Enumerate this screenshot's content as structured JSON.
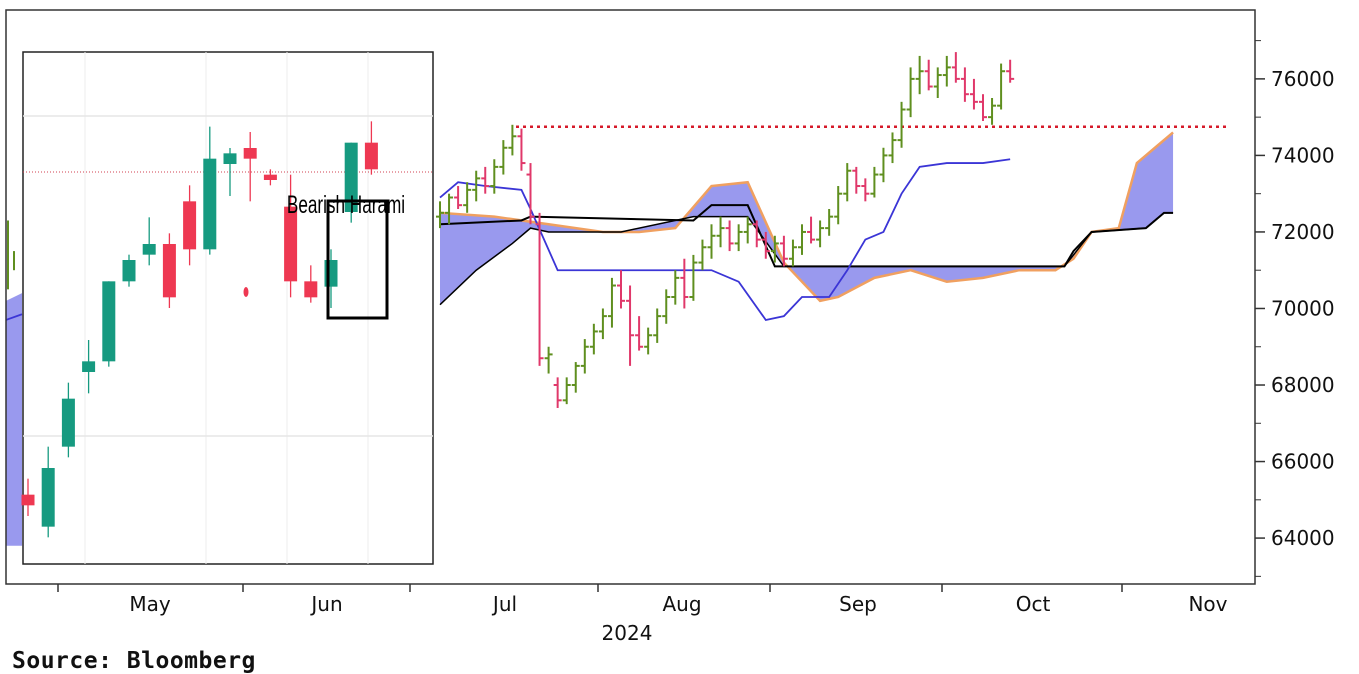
{
  "source": "Source: Bloomberg",
  "chart_data": [
    {
      "type": "ohlc",
      "year_label": "2024",
      "x_ticks": [
        "May",
        "Jun",
        "Jul",
        "Aug",
        "Sep",
        "Oct",
        "Nov"
      ],
      "y_ticks": [
        "64000",
        "66000",
        "68000",
        "70000",
        "72000",
        "74000",
        "76000"
      ],
      "ylim": [
        62800,
        77800
      ],
      "resistance_level": 74750,
      "colors": {
        "up_bar": "#5f8f1f",
        "down_bar": "#e0386a",
        "cloud_fill": "#9999ee",
        "cloud_edge_upper": "#f0a060",
        "cloud_edge_lower": "#000000",
        "kijun": "#000000",
        "tenkan": "#3b35d6",
        "resistance": "#d61a2a"
      },
      "series": [
        {
          "type": "ohlc",
          "bars": [
            [
              72400,
              72800,
              72100,
              72500
            ],
            [
              72500,
              73000,
              72200,
              72900
            ],
            [
              72900,
              73200,
              72600,
              72700
            ],
            [
              72700,
              73300,
              72500,
              73100
            ],
            [
              73100,
              73600,
              72800,
              73400
            ],
            [
              73400,
              73700,
              73000,
              73200
            ],
            [
              73200,
              73900,
              73000,
              73700
            ],
            [
              73700,
              74400,
              73500,
              74200
            ],
            [
              74200,
              74800,
              74000,
              74500
            ],
            [
              74500,
              74700,
              73600,
              73800
            ],
            [
              73500,
              73800,
              72200,
              72400
            ],
            [
              72200,
              72500,
              68500,
              68700
            ],
            [
              68700,
              69000,
              68300,
              68800
            ],
            [
              68000,
              68200,
              67400,
              67600
            ],
            [
              67600,
              68200,
              67500,
              68000
            ],
            [
              68000,
              68600,
              67800,
              68500
            ],
            [
              68500,
              69200,
              68300,
              69000
            ],
            [
              69000,
              69600,
              68800,
              69400
            ],
            [
              69400,
              70000,
              69200,
              69800
            ],
            [
              69800,
              70800,
              69500,
              70600
            ],
            [
              70600,
              71000,
              70000,
              70200
            ],
            [
              70200,
              70600,
              68500,
              69300
            ],
            [
              69300,
              69800,
              68900,
              69000
            ],
            [
              69000,
              69500,
              68800,
              69300
            ],
            [
              69300,
              70000,
              69100,
              69800
            ],
            [
              69800,
              70500,
              69600,
              70300
            ],
            [
              70300,
              71000,
              70100,
              70800
            ],
            [
              70800,
              71300,
              70000,
              70300
            ],
            [
              70300,
              71400,
              70200,
              71200
            ],
            [
              71200,
              71800,
              71000,
              71600
            ],
            [
              71600,
              72200,
              71300,
              71900
            ],
            [
              71900,
              72400,
              71600,
              72100
            ],
            [
              72100,
              72300,
              71500,
              71700
            ],
            [
              71700,
              72200,
              71500,
              72000
            ],
            [
              72000,
              72400,
              71700,
              72200
            ],
            [
              72200,
              72300,
              71600,
              71800
            ],
            [
              71800,
              72000,
              71300,
              71500
            ],
            [
              71500,
              71900,
              71200,
              71700
            ],
            [
              71700,
              71900,
              71100,
              71300
            ],
            [
              71300,
              71800,
              71100,
              71600
            ],
            [
              71600,
              72200,
              71400,
              72000
            ],
            [
              72000,
              72400,
              71700,
              71800
            ],
            [
              71800,
              72300,
              71600,
              72100
            ],
            [
              72100,
              72600,
              71900,
              72400
            ],
            [
              72400,
              73200,
              72200,
              73000
            ],
            [
              73000,
              73800,
              72800,
              73600
            ],
            [
              73600,
              73700,
              73000,
              73200
            ],
            [
              73200,
              73400,
              72800,
              73000
            ],
            [
              73000,
              73700,
              72900,
              73500
            ],
            [
              73500,
              74200,
              73300,
              74000
            ],
            [
              74000,
              74600,
              73800,
              74400
            ],
            [
              74400,
              75400,
              74200,
              75200
            ],
            [
              75200,
              76300,
              75000,
              76000
            ],
            [
              76000,
              76600,
              75600,
              76200
            ],
            [
              76200,
              76500,
              75700,
              75800
            ],
            [
              75800,
              76300,
              75500,
              76100
            ],
            [
              76100,
              76600,
              75800,
              76300
            ],
            [
              76300,
              76700,
              75900,
              76000
            ],
            [
              76000,
              76300,
              75400,
              75600
            ],
            [
              75600,
              76000,
              75200,
              75400
            ],
            [
              75400,
              75600,
              74900,
              75000
            ],
            [
              75000,
              75500,
              74800,
              75300
            ],
            [
              75300,
              76400,
              75200,
              76200
            ],
            [
              76200,
              76500,
              75900,
              76000
            ]
          ]
        },
        {
          "type": "line",
          "role": "tenkan",
          "points": [
            [
              0,
              72900
            ],
            [
              2,
              73300
            ],
            [
              5,
              73200
            ],
            [
              9,
              73100
            ],
            [
              10,
              72600
            ],
            [
              13,
              71000
            ],
            [
              30,
              71000
            ],
            [
              33,
              70700
            ],
            [
              36,
              69700
            ],
            [
              38,
              69800
            ],
            [
              40,
              70300
            ],
            [
              43,
              70300
            ],
            [
              45,
              71000
            ],
            [
              47,
              71800
            ],
            [
              49,
              72000
            ],
            [
              51,
              73000
            ],
            [
              53,
              73700
            ],
            [
              56,
              73800
            ],
            [
              60,
              73800
            ],
            [
              63,
              73900
            ]
          ]
        },
        {
          "type": "line",
          "role": "kijun",
          "points": [
            [
              0,
              72200
            ],
            [
              9,
              72300
            ],
            [
              10,
              72400
            ],
            [
              28,
              72300
            ],
            [
              30,
              72700
            ],
            [
              34,
              72700
            ],
            [
              37,
              71100
            ],
            [
              69,
              71100
            ],
            [
              70,
              71500
            ],
            [
              72,
              72000
            ],
            [
              78,
              72100
            ],
            [
              80,
              72500
            ],
            [
              81,
              72500
            ]
          ]
        },
        {
          "type": "area",
          "role": "cloud",
          "upper": [
            [
              0,
              72500
            ],
            [
              6,
              72400
            ],
            [
              12,
              72200
            ],
            [
              18,
              72000
            ],
            [
              22,
              72000
            ],
            [
              26,
              72100
            ],
            [
              30,
              73200
            ],
            [
              34,
              73300
            ],
            [
              38,
              71200
            ],
            [
              42,
              70200
            ],
            [
              44,
              70300
            ],
            [
              48,
              70800
            ],
            [
              52,
              71000
            ],
            [
              56,
              70700
            ],
            [
              60,
              70800
            ],
            [
              64,
              71000
            ],
            [
              68,
              71000
            ],
            [
              70,
              71300
            ],
            [
              72,
              72000
            ],
            [
              75,
              72100
            ],
            [
              77,
              73800
            ],
            [
              79,
              74200
            ],
            [
              81,
              74600
            ]
          ],
          "lower": [
            [
              0,
              70100
            ],
            [
              4,
              71000
            ],
            [
              8,
              71700
            ],
            [
              10,
              72100
            ],
            [
              12,
              72000
            ],
            [
              20,
              72000
            ],
            [
              28,
              72400
            ],
            [
              34,
              72400
            ],
            [
              38,
              71100
            ],
            [
              69,
              71100
            ],
            [
              72,
              72000
            ],
            [
              78,
              72100
            ],
            [
              80,
              72500
            ],
            [
              81,
              72500
            ]
          ]
        }
      ]
    },
    {
      "type": "candlestick",
      "annotation": "Bearish Harami",
      "reference_level": 70950,
      "colors": {
        "up": "#169a80",
        "down": "#ee3852"
      },
      "candles": [
        [
          64900,
          64700,
          65200,
          64500
        ],
        [
          64300,
          65400,
          65800,
          64100
        ],
        [
          65800,
          66700,
          67000,
          65600
        ],
        [
          67200,
          67400,
          67800,
          66800
        ],
        [
          67400,
          68900,
          68900,
          67300
        ],
        [
          68900,
          69300,
          69400,
          68800
        ],
        [
          69400,
          69600,
          70100,
          69200
        ],
        [
          69600,
          68600,
          69800,
          68400
        ],
        [
          70400,
          69500,
          70700,
          69200
        ],
        [
          69500,
          71200,
          71800,
          69400
        ],
        [
          71100,
          71300,
          71400,
          70500
        ],
        [
          71400,
          71200,
          71700,
          70400
        ],
        [
          70900,
          70800,
          71000,
          70700
        ],
        [
          70300,
          68900,
          70900,
          68600
        ],
        [
          68900,
          68600,
          69200,
          68500
        ],
        [
          68800,
          69300,
          69500,
          68400
        ],
        [
          70200,
          71500,
          71500,
          70000
        ],
        [
          71500,
          71000,
          71900,
          70900
        ]
      ],
      "extra_down_marker": 68700
    }
  ]
}
